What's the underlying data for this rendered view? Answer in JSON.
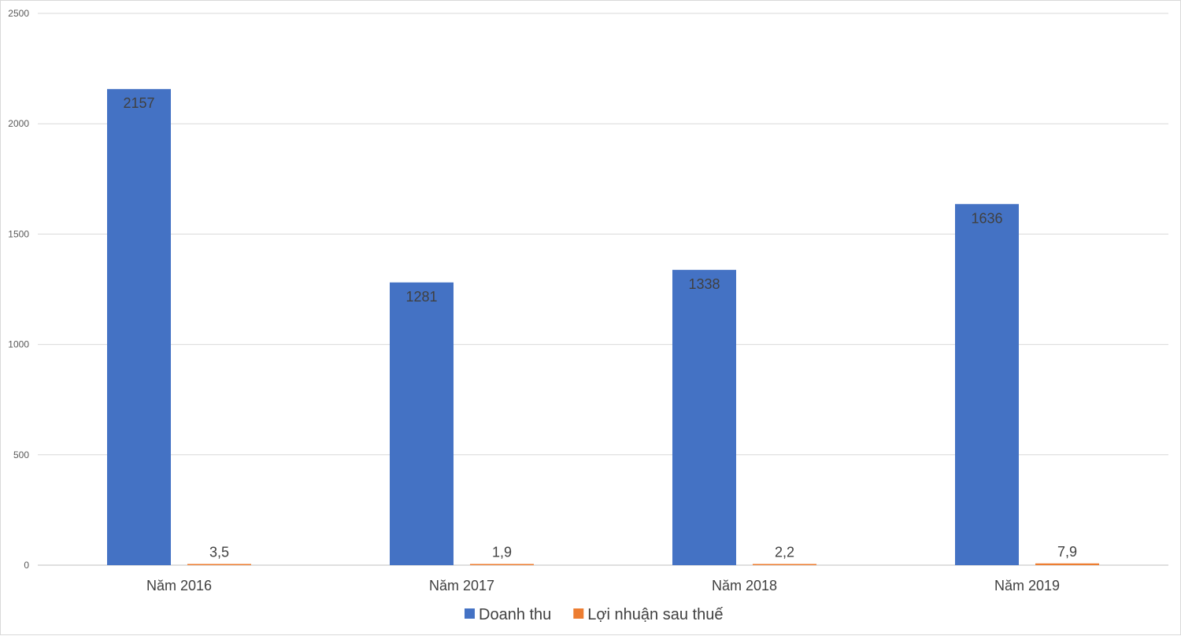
{
  "chart_data": {
    "type": "bar",
    "title": "",
    "xlabel": "",
    "ylabel": "",
    "ylim": [
      0,
      2500
    ],
    "yticks": [
      0,
      500,
      1000,
      1500,
      2000,
      2500
    ],
    "grid": true,
    "legend_position": "bottom",
    "categories": [
      "Năm 2016",
      "Năm 2017",
      "Năm 2018",
      "Năm 2019"
    ],
    "series": [
      {
        "name": "Doanh thu",
        "color": "#4472C4",
        "values": [
          2157,
          1281,
          1338,
          1636
        ],
        "labels": [
          "2157",
          "1281",
          "1338",
          "1636"
        ],
        "label_position": "inside-top"
      },
      {
        "name": "Lợi nhuận sau thuế",
        "color": "#ED7D31",
        "values": [
          3.5,
          1.9,
          2.2,
          7.9
        ],
        "labels": [
          "3,5",
          "1,9",
          "2,2",
          "7,9"
        ],
        "label_position": "outside-top"
      }
    ]
  }
}
